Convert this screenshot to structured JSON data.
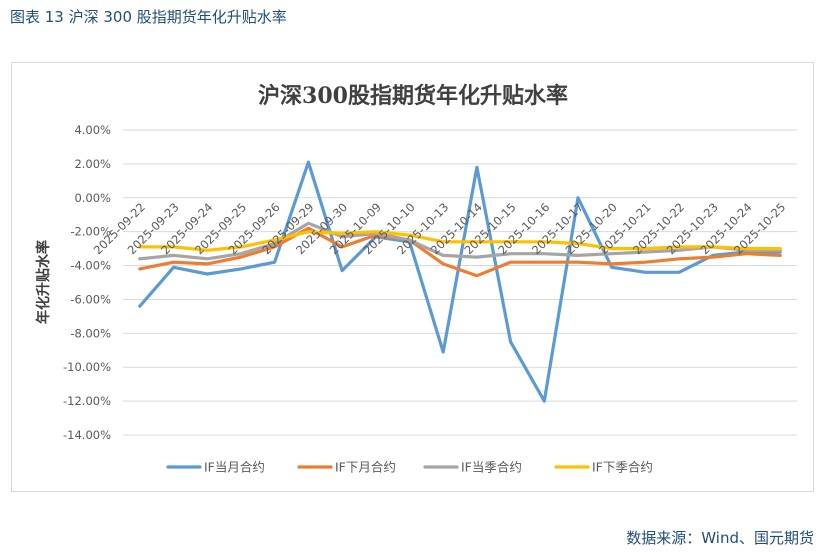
{
  "figure": {
    "caption": "图表 13  沪深 300 股指期货年化升贴水率",
    "source": "数据来源：Wind、国元期货"
  },
  "chart_data": {
    "type": "line",
    "title": "沪深300股指期货年化升贴水率",
    "xlabel": "",
    "ylabel": "年化升贴水率",
    "ylim": [
      -0.14,
      0.04
    ],
    "yticks": [
      0.04,
      0.02,
      0.0,
      -0.02,
      -0.04,
      -0.06,
      -0.08,
      -0.1,
      -0.12,
      -0.14
    ],
    "ytick_labels": [
      "4.00%",
      "2.00%",
      "0.00%",
      "-2.00%",
      "-4.00%",
      "-6.00%",
      "-8.00%",
      "-10.00%",
      "-12.00%",
      "-14.00%"
    ],
    "grid": true,
    "legend_position": "bottom",
    "categories": [
      "2025-09-22",
      "2025-09-23",
      "2025-09-24",
      "2025-09-25",
      "2025-09-26",
      "2025-09-29",
      "2025-09-30",
      "2025-10-09",
      "2025-10-10",
      "2025-10-13",
      "2025-10-14",
      "2025-10-15",
      "2025-10-16",
      "2025-10-17",
      "2025-10-20",
      "2025-10-21",
      "2025-10-22",
      "2025-10-23",
      "2025-10-24",
      "2025-10-25"
    ],
    "series": [
      {
        "name": "IF当月合约",
        "color": "#5b9bd5",
        "values": [
          -0.064,
          -0.041,
          -0.045,
          -0.042,
          -0.038,
          0.021,
          -0.043,
          -0.023,
          -0.026,
          -0.091,
          0.018,
          -0.085,
          -0.12,
          0.0,
          -0.041,
          -0.044,
          -0.044,
          -0.034,
          -0.032,
          -0.032
        ]
      },
      {
        "name": "IF下月合约",
        "color": "#ed7d31",
        "values": [
          -0.042,
          -0.038,
          -0.039,
          -0.035,
          -0.029,
          -0.018,
          -0.029,
          -0.022,
          -0.025,
          -0.039,
          -0.046,
          -0.038,
          -0.038,
          -0.038,
          -0.039,
          -0.038,
          -0.036,
          -0.035,
          -0.033,
          -0.034
        ]
      },
      {
        "name": "IF当季合约",
        "color": "#a5a5a5",
        "values": [
          -0.036,
          -0.034,
          -0.036,
          -0.033,
          -0.027,
          -0.015,
          -0.023,
          -0.021,
          -0.025,
          -0.034,
          -0.035,
          -0.033,
          -0.033,
          -0.034,
          -0.033,
          -0.032,
          -0.031,
          -0.029,
          -0.031,
          -0.031
        ]
      },
      {
        "name": "IF下季合约",
        "color": "#ffc000",
        "values": [
          -0.029,
          -0.029,
          -0.031,
          -0.029,
          -0.025,
          -0.02,
          -0.021,
          -0.02,
          -0.022,
          -0.026,
          -0.026,
          -0.026,
          -0.026,
          -0.027,
          -0.03,
          -0.03,
          -0.029,
          -0.029,
          -0.03,
          -0.03
        ]
      }
    ]
  }
}
